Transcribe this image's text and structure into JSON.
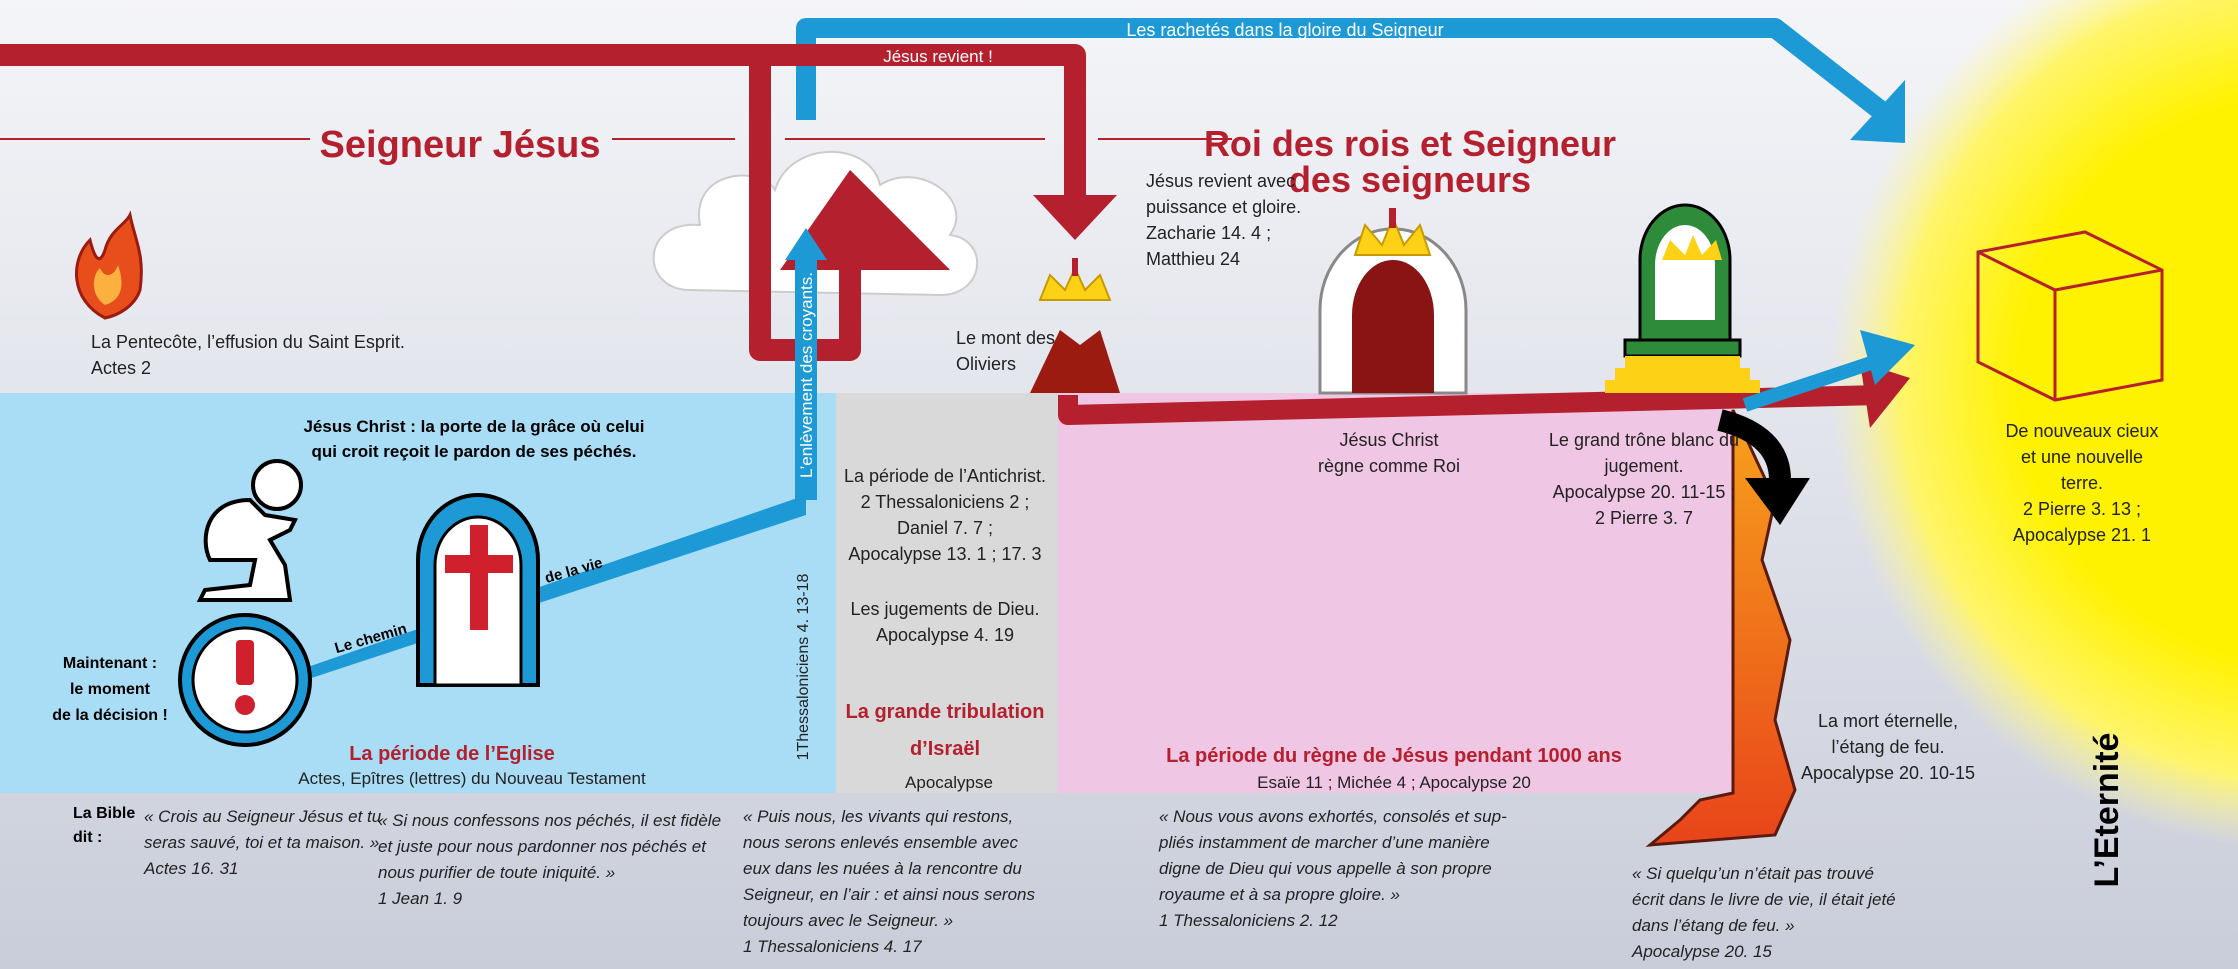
{
  "blocks": [
    {
      "lines": [
        "Les rachetés dans la gloire du Seigneur"
      ]
    },
    {
      "lines": [
        "Jésus revient !"
      ]
    },
    {
      "lines": [
        "Seigneur Jésus"
      ]
    },
    {
      "lines": [
        "Roi des rois et Seigneur",
        "des seigneurs"
      ]
    },
    {
      "lines": [
        "Jésus revient avec",
        "puissance et gloire.",
        "Zacharie 14. 4 ;",
        "Matthieu 24"
      ]
    },
    {
      "lines": [
        "La Pentecôte, l’effusion du Saint Esprit.",
        "Actes 2"
      ]
    },
    {
      "lines": [
        "Le mont des",
        "Oliviers"
      ]
    },
    {
      "lines": [
        "L’enlèvement des croyants."
      ]
    },
    {
      "lines": [
        "Jésus Christ : la porte de la grâce où celui",
        "qui croit reçoit le pardon de ses péchés."
      ]
    },
    {
      "lines": [
        "Le chemin"
      ]
    },
    {
      "lines": [
        "de la vie"
      ]
    },
    {
      "lines": [
        "Maintenant :",
        "le moment",
        "de la décision !"
      ]
    },
    {
      "lines": [
        "La période de l’Eglise"
      ]
    },
    {
      "lines": [
        "Actes, Epîtres (lettres) du Nouveau Testament"
      ]
    },
    {
      "lines": [
        "1Thessaloniciens 4. 13-18"
      ]
    },
    {
      "lines": [
        "La période de l’Antichrist.",
        "2 Thessaloniciens 2 ;",
        "Daniel 7. 7 ;",
        "Apocalypse 13. 1 ; 17. 3"
      ]
    },
    {
      "lines": [
        "Les jugements de Dieu.",
        "Apocalypse 4. 19"
      ]
    },
    {
      "lines": [
        "La grande tribulation",
        "d’Israël"
      ]
    },
    {
      "lines": [
        "Apocalypse"
      ]
    },
    {
      "lines": [
        "Jésus Christ",
        "règne comme Roi"
      ]
    },
    {
      "lines": [
        "Le grand trône blanc du",
        "jugement.",
        "Apocalypse 20. 11-15 ;",
        "2 Pierre 3. 7"
      ]
    },
    {
      "lines": [
        "La période du règne de Jésus pendant 1000 ans"
      ]
    },
    {
      "lines": [
        "Esaïe 11 ; Michée 4 ; Apocalypse 20"
      ]
    },
    {
      "lines": [
        "La mort éternelle,",
        "l’étang de feu.",
        "Apocalypse 20. 10-15"
      ]
    },
    {
      "lines": [
        "De nouveaux cieux",
        "et une nouvelle",
        "terre.",
        "2 Pierre 3. 13 ;",
        "Apocalypse 21. 1"
      ]
    },
    {
      "lines": [
        "L’Eternité"
      ]
    },
    {
      "lines": [
        "La Bible",
        "dit :"
      ]
    },
    {
      "lines": [
        "« Crois au Seigneur Jésus et tu",
        "seras sauvé, toi et ta maison. »",
        "Actes 16. 31"
      ]
    },
    {
      "lines": [
        "« Si nous confessons nos péchés, il est fidèle",
        "et juste pour nous pardonner nos péchés et",
        "nous purifier de toute iniquité. »",
        "1 Jean 1. 9"
      ]
    },
    {
      "lines": [
        "« Puis nous, les vivants qui restons,",
        "nous serons enlevés ensemble avec",
        "eux dans les nuées à la rencontre du",
        "Seigneur, en l’air : et ainsi nous serons",
        "toujours avec le Seigneur. »",
        "1 Thessaloniciens 4. 17"
      ]
    },
    {
      "lines": [
        "« Nous vous avons exhortés, consolés et sup-",
        "pliés instamment de marcher d’une manière",
        "digne de Dieu qui vous appelle à son propre",
        "royaume et à sa propre gloire. »",
        "1 Thessaloniciens 2. 12"
      ]
    },
    {
      "lines": [
        "« Si quelqu’un n’était pas trouvé",
        "écrit dans le livre de vie, il était jeté",
        "dans l’étang de feu. »",
        "Apocalypse 20. 15"
      ]
    }
  ]
}
